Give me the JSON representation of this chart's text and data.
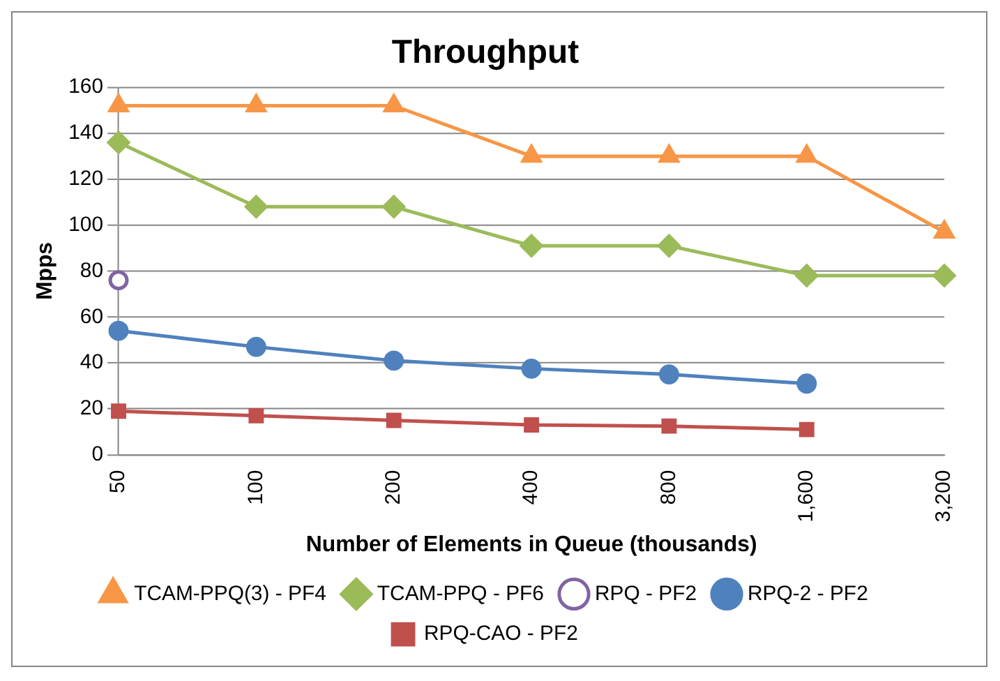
{
  "chart_data": {
    "type": "line",
    "title": "Throughput",
    "xlabel": "Number of Elements in Queue (thousands)",
    "ylabel": "Mpps",
    "categories": [
      "50",
      "100",
      "200",
      "400",
      "800",
      "1,600",
      "3,200"
    ],
    "series": [
      {
        "name": "TCAM-PPQ(3) - PF4",
        "color": "#f79646",
        "marker": "triangle",
        "values": [
          152,
          152,
          152,
          130,
          130,
          130,
          97
        ]
      },
      {
        "name": "TCAM-PPQ - PF6",
        "color": "#9bbb59",
        "marker": "diamond",
        "values": [
          136,
          108,
          108,
          91,
          91,
          78,
          78
        ]
      },
      {
        "name": "RPQ - PF2",
        "color": "#8064a2",
        "marker": "circle",
        "values": [
          76,
          null,
          null,
          null,
          null,
          null,
          null
        ]
      },
      {
        "name": "RPQ-2 - PF2",
        "color": "#4f81bd",
        "marker": "circle",
        "values": [
          54,
          47,
          41,
          37.5,
          35,
          31,
          null
        ]
      },
      {
        "name": "RPQ-CAO - PF2",
        "color": "#c0504d",
        "marker": "square",
        "values": [
          19,
          17,
          15,
          13,
          12.5,
          11,
          null
        ]
      }
    ],
    "ylim": [
      0,
      160
    ],
    "yticks": [
      0,
      20,
      40,
      60,
      80,
      100,
      120,
      140,
      160
    ],
    "grid": "y",
    "legend": "bottom",
    "line_style": "solid"
  }
}
